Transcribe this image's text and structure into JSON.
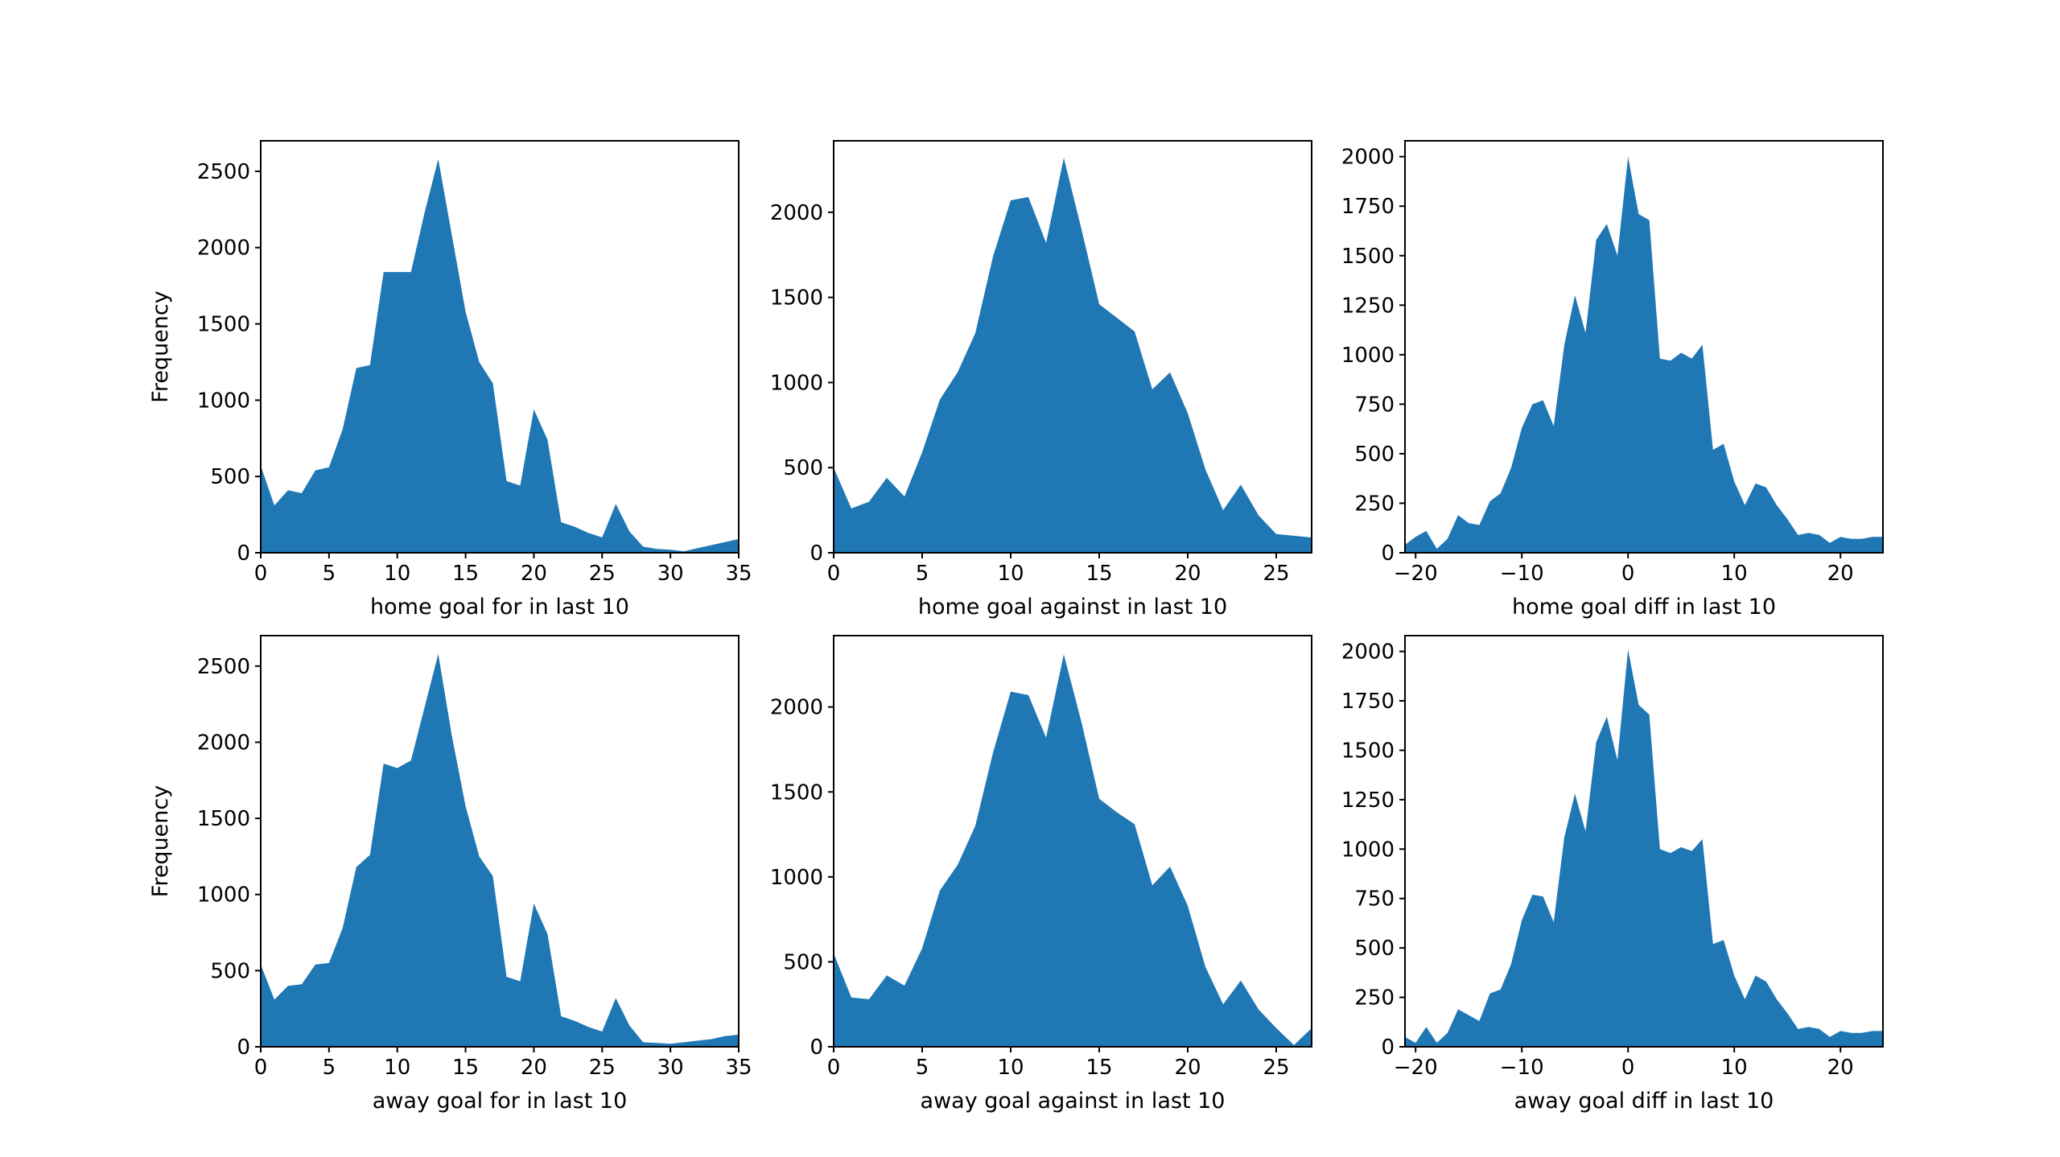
{
  "figure": {
    "fill_color": "#1f77b4"
  },
  "chart_data": [
    {
      "type": "area",
      "xlabel": "home goal for in last 10",
      "ylabel": "Frequency",
      "xlim": [
        0,
        35
      ],
      "ylim": [
        0,
        2700
      ],
      "xticks": [
        0,
        5,
        10,
        15,
        20,
        25,
        30,
        35
      ],
      "yticks": [
        0,
        500,
        1000,
        1500,
        2000,
        2500
      ],
      "x": [
        0,
        1,
        2,
        3,
        4,
        5,
        6,
        7,
        8,
        9,
        10,
        11,
        12,
        13,
        14,
        15,
        16,
        17,
        18,
        19,
        20,
        21,
        22,
        23,
        24,
        25,
        26,
        27,
        28,
        29,
        30,
        31,
        32,
        33,
        34,
        35
      ],
      "values": [
        570,
        310,
        410,
        390,
        540,
        560,
        810,
        1210,
        1230,
        1840,
        1840,
        1840,
        2230,
        2580,
        2080,
        1580,
        1250,
        1110,
        470,
        440,
        940,
        740,
        200,
        170,
        130,
        100,
        320,
        140,
        40,
        25,
        20,
        10,
        30,
        50,
        70,
        90
      ]
    },
    {
      "type": "area",
      "xlabel": "home goal against in last 10",
      "ylabel": "",
      "xlim": [
        0,
        27
      ],
      "ylim": [
        0,
        2420
      ],
      "xticks": [
        0,
        5,
        10,
        15,
        20,
        25
      ],
      "yticks": [
        0,
        500,
        1000,
        1500,
        2000
      ],
      "x": [
        0,
        1,
        2,
        3,
        4,
        5,
        6,
        7,
        8,
        9,
        10,
        11,
        12,
        13,
        14,
        15,
        16,
        17,
        18,
        19,
        20,
        21,
        22,
        23,
        24,
        25,
        26,
        27
      ],
      "values": [
        500,
        260,
        300,
        440,
        330,
        590,
        900,
        1060,
        1290,
        1740,
        2070,
        2090,
        1820,
        2320,
        1900,
        1460,
        1380,
        1300,
        960,
        1060,
        820,
        490,
        250,
        400,
        220,
        110,
        100,
        90
      ]
    },
    {
      "type": "area",
      "xlabel": "home goal diff in last 10",
      "ylabel": "",
      "xlim": [
        -21,
        24
      ],
      "ylim": [
        0,
        2080
      ],
      "xticks": [
        -20,
        -10,
        0,
        10,
        20
      ],
      "xtick_labels": [
        "−20",
        "−10",
        "0",
        "10",
        "20"
      ],
      "yticks": [
        0,
        250,
        500,
        750,
        1000,
        1250,
        1500,
        1750,
        2000
      ],
      "x": [
        -21,
        -20,
        -19,
        -18,
        -17,
        -16,
        -15,
        -14,
        -13,
        -12,
        -11,
        -10,
        -9,
        -8,
        -7,
        -6,
        -5,
        -4,
        -3,
        -2,
        -1,
        0,
        1,
        2,
        3,
        4,
        5,
        6,
        7,
        8,
        9,
        10,
        11,
        12,
        13,
        14,
        15,
        16,
        17,
        18,
        19,
        20,
        21,
        22,
        23,
        24
      ],
      "values": [
        40,
        80,
        110,
        20,
        70,
        190,
        150,
        140,
        260,
        300,
        430,
        630,
        750,
        770,
        640,
        1050,
        1300,
        1110,
        1580,
        1660,
        1500,
        2000,
        1710,
        1680,
        980,
        970,
        1010,
        980,
        1050,
        520,
        550,
        360,
        240,
        350,
        330,
        240,
        170,
        90,
        100,
        90,
        50,
        80,
        70,
        70,
        80,
        80
      ]
    },
    {
      "type": "area",
      "xlabel": "away goal for in last 10",
      "ylabel": "Frequency",
      "xlim": [
        0,
        35
      ],
      "ylim": [
        0,
        2700
      ],
      "xticks": [
        0,
        5,
        10,
        15,
        20,
        25,
        30,
        35
      ],
      "yticks": [
        0,
        500,
        1000,
        1500,
        2000,
        2500
      ],
      "x": [
        0,
        1,
        2,
        3,
        4,
        5,
        6,
        7,
        8,
        9,
        10,
        11,
        12,
        13,
        14,
        15,
        16,
        17,
        18,
        19,
        20,
        21,
        22,
        23,
        24,
        25,
        26,
        27,
        28,
        29,
        30,
        31,
        32,
        33,
        34,
        35
      ],
      "values": [
        540,
        310,
        400,
        410,
        540,
        550,
        780,
        1180,
        1260,
        1860,
        1830,
        1880,
        2230,
        2580,
        2040,
        1580,
        1250,
        1120,
        460,
        430,
        940,
        740,
        200,
        170,
        130,
        100,
        320,
        140,
        30,
        25,
        20,
        30,
        40,
        50,
        70,
        80
      ]
    },
    {
      "type": "area",
      "xlabel": "away goal against in last 10",
      "ylabel": "",
      "xlim": [
        0,
        27
      ],
      "ylim": [
        0,
        2420
      ],
      "xticks": [
        0,
        5,
        10,
        15,
        20,
        25
      ],
      "yticks": [
        0,
        500,
        1000,
        1500,
        2000
      ],
      "x": [
        0,
        1,
        2,
        3,
        4,
        5,
        6,
        7,
        8,
        9,
        10,
        11,
        12,
        13,
        14,
        15,
        16,
        17,
        18,
        19,
        20,
        21,
        22,
        23,
        24,
        25,
        26,
        27
      ],
      "values": [
        550,
        290,
        280,
        420,
        360,
        580,
        920,
        1070,
        1300,
        1730,
        2090,
        2070,
        1820,
        2310,
        1910,
        1460,
        1380,
        1310,
        950,
        1060,
        830,
        470,
        250,
        390,
        220,
        110,
        10,
        110
      ]
    },
    {
      "type": "area",
      "xlabel": "away goal diff in last 10",
      "ylabel": "",
      "xlim": [
        -21,
        24
      ],
      "ylim": [
        0,
        2080
      ],
      "xticks": [
        -20,
        -10,
        0,
        10,
        20
      ],
      "xtick_labels": [
        "−20",
        "−10",
        "0",
        "10",
        "20"
      ],
      "yticks": [
        0,
        250,
        500,
        750,
        1000,
        1250,
        1500,
        1750,
        2000
      ],
      "x": [
        -21,
        -20,
        -19,
        -18,
        -17,
        -16,
        -15,
        -14,
        -13,
        -12,
        -11,
        -10,
        -9,
        -8,
        -7,
        -6,
        -5,
        -4,
        -3,
        -2,
        -1,
        0,
        1,
        2,
        3,
        4,
        5,
        6,
        7,
        8,
        9,
        10,
        11,
        12,
        13,
        14,
        15,
        16,
        17,
        18,
        19,
        20,
        21,
        22,
        23,
        24
      ],
      "values": [
        50,
        20,
        100,
        20,
        70,
        190,
        160,
        130,
        270,
        290,
        420,
        640,
        770,
        760,
        630,
        1060,
        1280,
        1090,
        1540,
        1670,
        1450,
        2010,
        1730,
        1680,
        1000,
        980,
        1010,
        990,
        1050,
        520,
        540,
        360,
        240,
        360,
        330,
        240,
        170,
        90,
        100,
        90,
        50,
        80,
        70,
        70,
        80,
        80
      ]
    }
  ]
}
